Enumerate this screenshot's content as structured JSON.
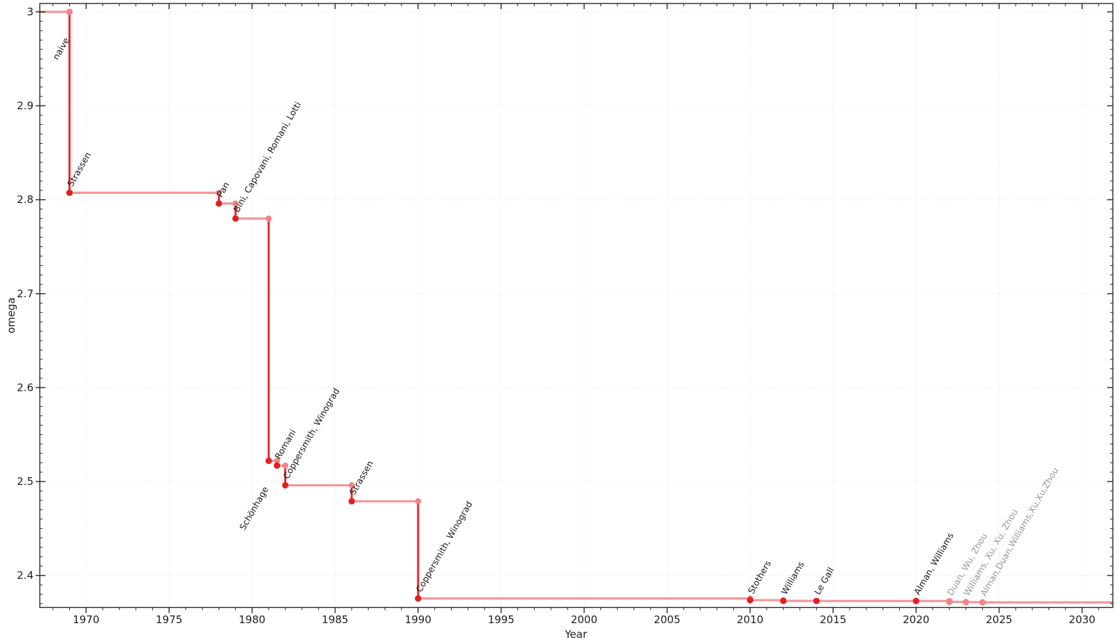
{
  "chart_data": {
    "type": "line",
    "subtype": "step-annotated",
    "title": "",
    "xlabel": "Year",
    "ylabel": "omega",
    "x_range": [
      1967.21,
      2031.85
    ],
    "y_range": [
      2.36594,
      3.00892
    ],
    "x_ticks": [
      1970,
      1975,
      1980,
      1985,
      1990,
      1995,
      2000,
      2005,
      2010,
      2015,
      2020,
      2025,
      2030
    ],
    "x_tick_labels": [
      "1970",
      "1975",
      "1980",
      "1985",
      "1990",
      "1995",
      "2000",
      "2005",
      "2010",
      "2015",
      "2020",
      "2025",
      "2030"
    ],
    "y_ticks": [
      2.4,
      2.5,
      2.6,
      2.7,
      2.8,
      2.9,
      3.0
    ],
    "y_tick_labels": [
      "2.4",
      "2.5",
      "2.6",
      "2.7",
      "2.8",
      "2.9",
      "3"
    ],
    "x_minor_step": 1,
    "y_minor_step": 0.01,
    "grid": "dotted-major",
    "legend": "none",
    "start_omega": 3.0,
    "points": [
      {
        "label": "naive",
        "year": 1969,
        "omega": 3.0,
        "dot": "pink",
        "label_color": "black",
        "placement": "below"
      },
      {
        "label": "Strassen",
        "year": 1969,
        "omega": 2.8074,
        "dot": "red",
        "label_color": "black",
        "placement": "above"
      },
      {
        "label": "Pan",
        "year": 1978,
        "omega": 2.796,
        "dot": "red",
        "label_color": "black",
        "placement": "above"
      },
      {
        "label": "Bini, Capovani, Romani, Lotti",
        "year": 1979,
        "omega": 2.78,
        "dot": "red",
        "label_color": "black",
        "placement": "above"
      },
      {
        "label": "Schönhage",
        "year": 1981,
        "omega": 2.522,
        "dot": "red",
        "label_color": "black",
        "placement": "below"
      },
      {
        "label": "Romani",
        "year": 1981.5,
        "omega": 2.517,
        "dot": "red",
        "label_color": "black",
        "placement": "above"
      },
      {
        "label": "Coppersmith, Winograd",
        "year": 1982,
        "omega": 2.496,
        "dot": "red",
        "label_color": "black",
        "placement": "above"
      },
      {
        "label": "Strassen",
        "year": 1986,
        "omega": 2.479,
        "dot": "red",
        "label_color": "black",
        "placement": "above"
      },
      {
        "label": "Coppersmith, Winograd",
        "year": 1990,
        "omega": 2.3755,
        "dot": "red",
        "label_color": "black",
        "placement": "above"
      },
      {
        "label": "Stothers",
        "year": 2010,
        "omega": 2.3737,
        "dot": "red",
        "label_color": "black",
        "placement": "above"
      },
      {
        "label": "Williams",
        "year": 2012,
        "omega": 2.3729,
        "dot": "red",
        "label_color": "black",
        "placement": "above"
      },
      {
        "label": "Le Gall",
        "year": 2014,
        "omega": 2.3728639,
        "dot": "red",
        "label_color": "black",
        "placement": "above"
      },
      {
        "label": "Alman, Williams",
        "year": 2020,
        "omega": 2.3728596,
        "dot": "red",
        "label_color": "black",
        "placement": "above"
      },
      {
        "label": "Duan, Wu, Zhou",
        "year": 2022,
        "omega": 2.371866,
        "dot": "pink",
        "label_color": "gray",
        "placement": "above"
      },
      {
        "label": "Williams, Xu, Xu, Zhou",
        "year": 2023,
        "omega": 2.371552,
        "dot": "pink",
        "label_color": "gray",
        "placement": "above"
      },
      {
        "label": "Alman,Duan,Williams,Xu,Xu,Zhou",
        "year": 2024,
        "omega": 2.371339,
        "dot": "pink",
        "label_color": "gray",
        "placement": "above"
      }
    ],
    "colors": {
      "step_line_pink": "#f4969a",
      "drop_line_red": "#e8282c",
      "dot_red": "#e01f24",
      "dot_pink": "#f0868b",
      "label_black": "#1a1a1a",
      "label_gray": "#979797",
      "grid": "#e3e3e3",
      "axis": "#262626",
      "tick_label": "#1c1c1c"
    }
  }
}
